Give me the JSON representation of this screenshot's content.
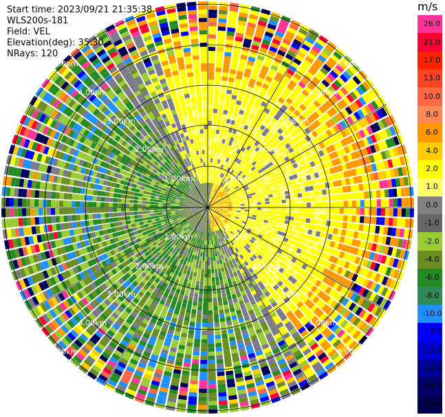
{
  "header": {
    "start_time": "Start time: 2023/09/21 21:35:38",
    "instrument": "WLS200s-181",
    "field": "Field: VEL",
    "elevation": "Elevation(deg): 35.30",
    "nrays": "NRays: 120"
  },
  "colorbar": {
    "unit": "m/s",
    "ticks": [
      "26.0",
      "21.0",
      "17.0",
      "13.0",
      "10.0",
      "8.0",
      "6.0",
      "4.0",
      "2.0",
      "1.0",
      "0.0",
      "-1.0",
      "-2.0",
      "-4.0",
      "-6.0",
      "-8.0",
      "-10.0",
      "-13.0",
      "-17.0",
      "-21.0",
      "-26.0",
      "-30.0"
    ],
    "colors": [
      "#ff3399",
      "#ff0033",
      "#ff2200",
      "#ff4422",
      "#ff6644",
      "#ff8855",
      "#ff9900",
      "#ffcc00",
      "#ffff00",
      "#ffff66",
      "#808080",
      "#666666",
      "#99cc33",
      "#6b8e23",
      "#228b22",
      "#2e8b57",
      "#1e90ff",
      "#0000ff",
      "#0000cc",
      "#000099",
      "#000066",
      "#00004d"
    ]
  },
  "chart_data": {
    "type": "ppi",
    "range_rings": [
      "1.00km",
      "2.00km",
      "3.00km",
      "4.00km",
      "5.00km"
    ],
    "rays": 120
  }
}
